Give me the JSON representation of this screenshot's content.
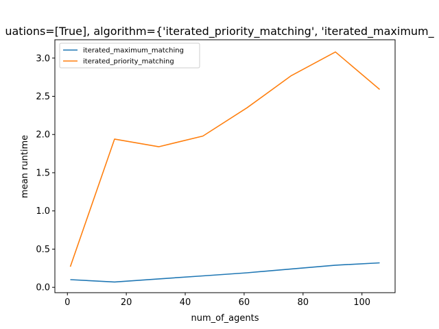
{
  "chart_data": {
    "type": "line",
    "title": "uations=[True], algorithm={'iterated_priority_matching', 'iterated_maximum_",
    "xlabel": "num_of_agents",
    "ylabel": "mean runtime",
    "xlim": [
      -4.25,
      111.25
    ],
    "ylim": [
      -0.07,
      3.24
    ],
    "xticks": [
      0,
      20,
      40,
      60,
      80,
      100
    ],
    "yticks": [
      0.0,
      0.5,
      1.0,
      1.5,
      2.0,
      2.5,
      3.0
    ],
    "xtick_labels": [
      "0",
      "20",
      "40",
      "60",
      "80",
      "100"
    ],
    "ytick_labels": [
      "0.0",
      "0.5",
      "1.0",
      "1.5",
      "2.0",
      "2.5",
      "3.0"
    ],
    "grid": false,
    "legend_position": "upper-left",
    "x": [
      1,
      16,
      31,
      46,
      61,
      76,
      91,
      106
    ],
    "series": [
      {
        "name": "iterated_maximum_matching",
        "color": "#1f77b4",
        "values": [
          0.1,
          0.07,
          0.11,
          0.15,
          0.19,
          0.24,
          0.29,
          0.32
        ]
      },
      {
        "name": "iterated_priority_matching",
        "color": "#ff7f0e",
        "values": [
          0.27,
          1.94,
          1.84,
          1.98,
          2.35,
          2.77,
          3.08,
          2.59
        ]
      }
    ]
  }
}
